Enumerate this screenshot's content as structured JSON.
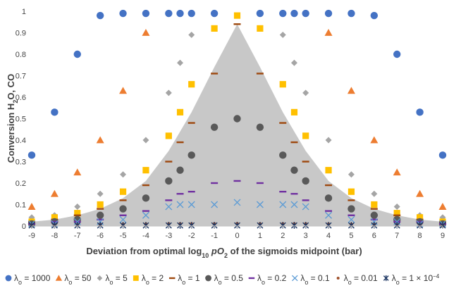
{
  "chart_data": {
    "type": "scatter",
    "title": "",
    "xlabel": "Deviation from optimal log10 pO2 of the sigmoids midpoint (bar)",
    "xlabel_parts": [
      {
        "t": "Deviation from optimal log",
        "s": "n"
      },
      {
        "t": "10",
        "s": "sub"
      },
      {
        "t": " ",
        "s": "n"
      },
      {
        "t": "p",
        "s": "i"
      },
      {
        "t": "O",
        "s": "i"
      },
      {
        "t": "2",
        "s": "sub"
      },
      {
        "t": " of the sigmoids midpoint (bar)",
        "s": "n"
      }
    ],
    "ylabel": "Conversion H2O, CO",
    "ylabel_parts": [
      {
        "t": "Conversion H",
        "s": "n"
      },
      {
        "t": "2",
        "s": "sub"
      },
      {
        "t": "O, CO",
        "s": "n"
      }
    ],
    "xlim": [
      -9,
      9
    ],
    "ylim": [
      0,
      1
    ],
    "x_ticks": [
      -9,
      -8,
      -7,
      -6,
      -5,
      -4,
      -3,
      -2,
      -1,
      0,
      1,
      2,
      3,
      4,
      5,
      6,
      7,
      8,
      9
    ],
    "y_ticks": [
      0,
      0.1,
      0.2,
      0.3,
      0.4,
      0.5,
      0.6,
      0.7,
      0.8,
      0.9,
      1
    ],
    "y_tick_labels": [
      "0",
      "0.1",
      "0.2",
      "0.3",
      "0.4",
      "0.5",
      "0.6",
      "0.7",
      "0.8",
      "0.9",
      "1"
    ],
    "grid": false,
    "legend_position": "bottom",
    "envelope": {
      "color": "#c8c8c8",
      "x": [
        -9,
        -8,
        -7,
        -6,
        -5,
        -4,
        -3,
        -2,
        -1,
        0,
        1,
        2,
        3,
        4,
        5,
        6,
        7,
        8,
        9
      ],
      "y": [
        0.02,
        0.03,
        0.05,
        0.08,
        0.13,
        0.21,
        0.35,
        0.53,
        0.74,
        0.94,
        0.74,
        0.53,
        0.35,
        0.21,
        0.13,
        0.08,
        0.05,
        0.03,
        0.02
      ]
    },
    "series": [
      {
        "name": "λo = 1000",
        "prefix": "λ",
        "sub": "o",
        "value": " = 1000",
        "marker": "circle",
        "color": "#4472c4",
        "x": [
          -9,
          -8,
          -7,
          -6,
          -5,
          -4,
          -3,
          -2.5,
          -2,
          -1,
          1,
          2,
          2.5,
          3,
          4,
          5,
          6,
          7,
          8,
          9
        ],
        "y": [
          0.33,
          0.53,
          0.8,
          0.98,
          0.99,
          0.99,
          0.99,
          0.99,
          0.99,
          0.99,
          0.99,
          0.99,
          0.99,
          0.99,
          0.99,
          0.99,
          0.98,
          0.8,
          0.53,
          0.33
        ]
      },
      {
        "name": "λo = 50",
        "prefix": "λ",
        "sub": "o",
        "value": " = 50",
        "marker": "triangle",
        "color": "#ed7d31",
        "x": [
          -9,
          -8,
          -7,
          -6,
          -5,
          -4,
          4,
          5,
          6,
          7,
          8,
          9
        ],
        "y": [
          0.09,
          0.15,
          0.25,
          0.4,
          0.63,
          0.9,
          0.9,
          0.63,
          0.4,
          0.25,
          0.15,
          0.09
        ]
      },
      {
        "name": "λo = 5",
        "prefix": "λ",
        "sub": "o",
        "value": " = 5",
        "marker": "diamond",
        "color": "#a5a5a5",
        "x": [
          -9,
          -8,
          -7,
          -6,
          -5,
          -4,
          -3,
          -2.5,
          -2,
          2,
          2.5,
          3,
          4,
          5,
          6,
          7,
          8,
          9
        ],
        "y": [
          0.04,
          0.05,
          0.09,
          0.15,
          0.24,
          0.4,
          0.62,
          0.76,
          0.89,
          0.89,
          0.76,
          0.62,
          0.4,
          0.24,
          0.15,
          0.09,
          0.05,
          0.04
        ]
      },
      {
        "name": "λo = 2",
        "prefix": "λ",
        "sub": "o",
        "value": " = 2",
        "marker": "square",
        "color": "#ffc000",
        "x": [
          -9,
          -8,
          -7,
          -6,
          -5,
          -4,
          -3,
          -2.5,
          -2,
          -1,
          0,
          1,
          2,
          2.5,
          3,
          4,
          5,
          6,
          7,
          8,
          9
        ],
        "y": [
          0.02,
          0.04,
          0.06,
          0.1,
          0.16,
          0.26,
          0.42,
          0.53,
          0.66,
          0.92,
          0.98,
          0.92,
          0.66,
          0.53,
          0.42,
          0.26,
          0.16,
          0.1,
          0.06,
          0.04,
          0.02
        ]
      },
      {
        "name": "λo = 1",
        "prefix": "λ",
        "sub": "o",
        "value": " = 1",
        "marker": "dash",
        "color": "#9e480e",
        "x": [
          -9,
          -8,
          -7,
          -6,
          -5,
          -4,
          -3,
          -2.5,
          -2,
          -1,
          0,
          1,
          2,
          2.5,
          3,
          4,
          5,
          6,
          7,
          8,
          9
        ],
        "y": [
          0.02,
          0.03,
          0.05,
          0.08,
          0.12,
          0.19,
          0.3,
          0.39,
          0.48,
          0.71,
          0.94,
          0.71,
          0.48,
          0.39,
          0.3,
          0.19,
          0.12,
          0.08,
          0.05,
          0.03,
          0.02
        ]
      },
      {
        "name": "λo = 0.5",
        "prefix": "λ",
        "sub": "o",
        "value": " = 0.5",
        "marker": "circle",
        "color": "#595959",
        "x": [
          -9,
          -8,
          -7,
          -6,
          -5,
          -4,
          -3,
          -2.5,
          -2,
          -1,
          0,
          1,
          2,
          2.5,
          3,
          4,
          5,
          6,
          7,
          8,
          9
        ],
        "y": [
          0.01,
          0.02,
          0.03,
          0.05,
          0.08,
          0.13,
          0.21,
          0.26,
          0.33,
          0.46,
          0.5,
          0.46,
          0.33,
          0.26,
          0.21,
          0.13,
          0.08,
          0.05,
          0.03,
          0.02,
          0.01
        ]
      },
      {
        "name": "λo = 0.2",
        "prefix": "λ",
        "sub": "o",
        "value": " = 0.2",
        "marker": "dash",
        "color": "#7030a0",
        "x": [
          -9,
          -8,
          -7,
          -6,
          -5,
          -4,
          -3,
          -2.5,
          -2,
          -1,
          0,
          1,
          2,
          2.5,
          3,
          4,
          5,
          6,
          7,
          8,
          9
        ],
        "y": [
          0.01,
          0.02,
          0.02,
          0.03,
          0.05,
          0.07,
          0.12,
          0.15,
          0.16,
          0.2,
          0.21,
          0.2,
          0.16,
          0.15,
          0.12,
          0.07,
          0.05,
          0.03,
          0.02,
          0.02,
          0.01
        ]
      },
      {
        "name": "λo = 0.1",
        "prefix": "λ",
        "sub": "o",
        "value": " = 0.1",
        "marker": "x",
        "color": "#5b9bd5",
        "x": [
          -9,
          -8,
          -7,
          -6,
          -5,
          -4,
          -3,
          -2.5,
          -2,
          -1,
          0,
          1,
          2,
          2.5,
          3,
          4,
          5,
          6,
          7,
          8,
          9
        ],
        "y": [
          0.01,
          0.01,
          0.02,
          0.02,
          0.03,
          0.05,
          0.09,
          0.1,
          0.1,
          0.1,
          0.11,
          0.1,
          0.1,
          0.1,
          0.09,
          0.05,
          0.03,
          0.02,
          0.02,
          0.01,
          0.01
        ]
      },
      {
        "name": "λo = 0.01",
        "prefix": "λ",
        "sub": "o",
        "value": " = 0.01",
        "marker": "smalldot",
        "color": "#a0522d",
        "x": [
          -9,
          -8,
          -7,
          -6,
          -5,
          -4,
          -3,
          -2.5,
          -2,
          -1,
          0,
          1,
          2,
          2.5,
          3,
          4,
          5,
          6,
          7,
          8,
          9
        ],
        "y": [
          0.005,
          0.005,
          0.006,
          0.007,
          0.008,
          0.009,
          0.01,
          0.01,
          0.01,
          0.01,
          0.011,
          0.01,
          0.01,
          0.01,
          0.01,
          0.009,
          0.008,
          0.007,
          0.006,
          0.005,
          0.005
        ]
      },
      {
        "name": "λo = 1 × 10−4",
        "prefix": "λ",
        "sub": "o",
        "value": " = 1 × 10",
        "sup": "−4",
        "marker": "star",
        "color": "#1f3864",
        "x": [
          -9,
          -8,
          -7,
          -6,
          -5,
          -4,
          -3,
          -2.5,
          -2,
          -1,
          0,
          1,
          2,
          2.5,
          3,
          4,
          5,
          6,
          7,
          8,
          9
        ],
        "y": [
          0.003,
          0.003,
          0.003,
          0.003,
          0.003,
          0.003,
          0.003,
          0.003,
          0.003,
          0.003,
          0.003,
          0.003,
          0.003,
          0.003,
          0.003,
          0.003,
          0.003,
          0.003,
          0.003,
          0.003,
          0.003
        ]
      }
    ]
  }
}
